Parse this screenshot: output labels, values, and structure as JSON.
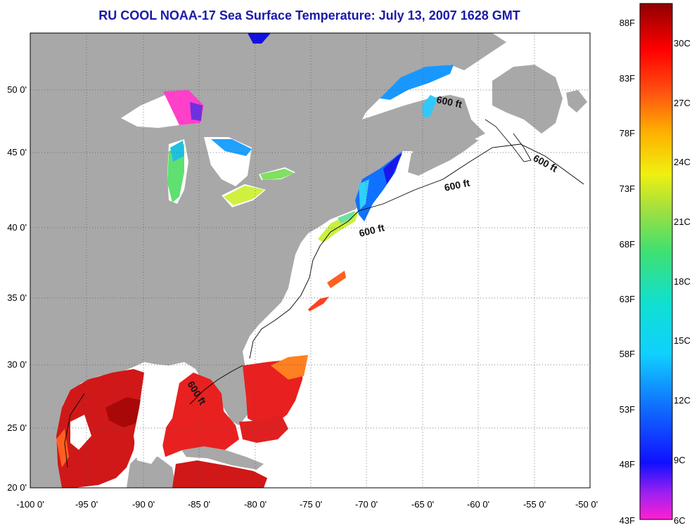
{
  "title": "RU COOL  NOAA-17  Sea Surface Temperature:  July 13, 2007 1628 GMT",
  "longitude_ticks": [
    "-100 0'",
    "-95 0'",
    "-90 0'",
    "-85 0'",
    "-80 0'",
    "-75 0'",
    "-70 0'",
    "-65 0'",
    "-60 0'",
    "-55 0'",
    "-50 0'"
  ],
  "latitude_ticks": [
    "50 0'",
    "45 0'",
    "40 0'",
    "35 0'",
    "30 0'",
    "25 0'",
    "20 0'"
  ],
  "isobath_label": "600 ft",
  "colorbar": {
    "fahrenheit": [
      "88F",
      "83F",
      "78F",
      "73F",
      "68F",
      "63F",
      "58F",
      "53F",
      "48F",
      "43F"
    ],
    "celsius": [
      "30C",
      "27C",
      "24C",
      "21C",
      "18C",
      "15C",
      "12C",
      "9C",
      "6C"
    ],
    "range_f": [
      43,
      91
    ],
    "range_c": [
      6,
      32.8
    ]
  },
  "colors": {
    "land": "#a8a8a8",
    "no_data": "#ffffff",
    "warm_sst": "#d41010",
    "title": "#1a1aa8"
  }
}
